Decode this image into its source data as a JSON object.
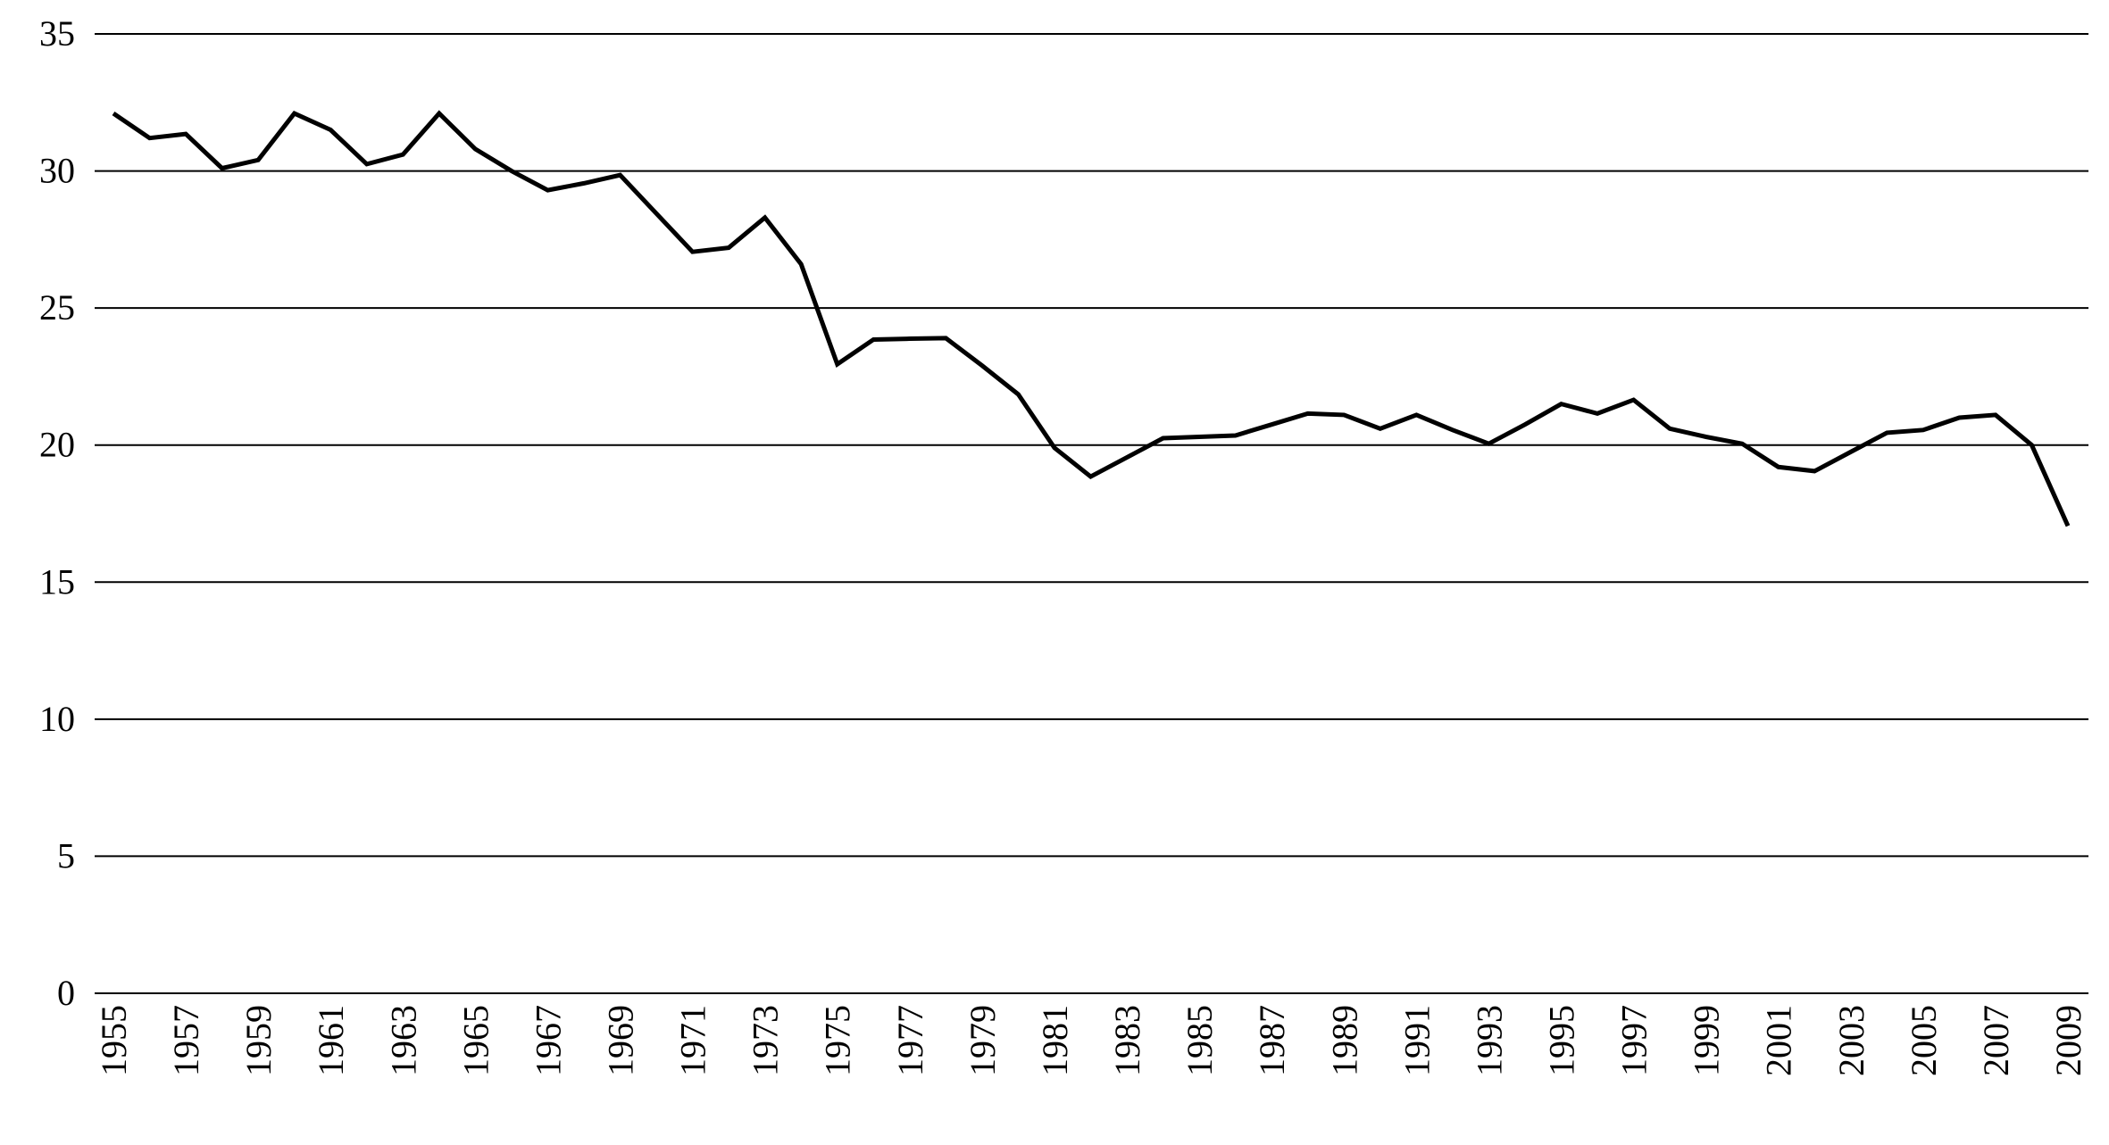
{
  "chart_data": {
    "type": "line",
    "x": [
      1955,
      1956,
      1957,
      1958,
      1959,
      1960,
      1961,
      1962,
      1963,
      1964,
      1965,
      1966,
      1967,
      1968,
      1969,
      1970,
      1971,
      1972,
      1973,
      1974,
      1975,
      1976,
      1977,
      1978,
      1979,
      1980,
      1981,
      1982,
      1983,
      1984,
      1985,
      1986,
      1987,
      1988,
      1989,
      1990,
      1991,
      1992,
      1993,
      1994,
      1995,
      1996,
      1997,
      1998,
      1999,
      2000,
      2001,
      2002,
      2003,
      2004,
      2005,
      2006,
      2007,
      2008,
      2009
    ],
    "values": [
      32.1,
      31.2,
      31.35,
      30.1,
      30.4,
      32.1,
      31.5,
      30.25,
      30.6,
      32.1,
      30.8,
      30.0,
      29.3,
      29.55,
      29.85,
      28.45,
      27.05,
      27.2,
      28.3,
      26.6,
      22.95,
      23.85,
      23.88,
      23.9,
      22.9,
      21.85,
      19.9,
      18.85,
      19.55,
      20.25,
      20.3,
      20.35,
      20.75,
      21.15,
      21.1,
      20.6,
      21.1,
      20.55,
      20.05,
      20.75,
      21.5,
      21.15,
      21.65,
      20.6,
      20.3,
      20.05,
      19.2,
      19.05,
      19.75,
      20.45,
      20.55,
      21.0,
      21.1,
      20.0,
      17.05
    ],
    "color": "#000000",
    "xlim": [
      1955,
      2009
    ],
    "xticks": [
      1955,
      1957,
      1959,
      1961,
      1963,
      1965,
      1967,
      1969,
      1971,
      1973,
      1975,
      1977,
      1979,
      1981,
      1983,
      1985,
      1987,
      1989,
      1991,
      1993,
      1995,
      1997,
      1999,
      2001,
      2003,
      2005,
      2007,
      2009
    ],
    "ylim": [
      0,
      35
    ],
    "yticks": [
      0,
      5,
      10,
      15,
      20,
      25,
      30,
      35
    ],
    "grid": true
  }
}
